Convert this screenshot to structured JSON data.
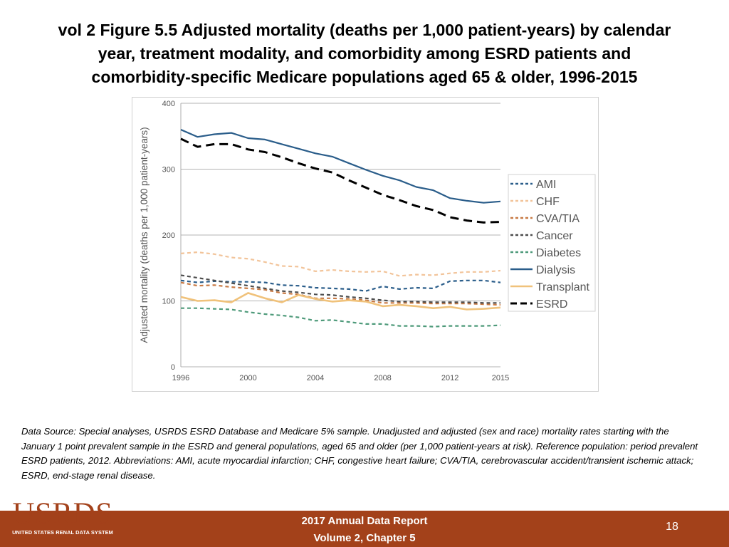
{
  "title_lines": [
    "vol 2 Figure 5.5 Adjusted mortality (deaths per 1,000 patient-years) by calendar",
    "year, treatment modality, and comorbidity among ESRD patients and",
    "comorbidity-specific Medicare populations aged 65 & older, 1996-2015"
  ],
  "chart_data": {
    "type": "line",
    "title": "vol 2 Figure 5.5 Adjusted mortality (deaths per 1,000 patient-years) by calendar year, treatment modality, and comorbidity among ESRD patients and comorbidity-specific Medicare populations aged 65 & older, 1996-2015",
    "xlabel": "",
    "ylabel": "Adjusted mortality (deaths per 1,000 patient-years)",
    "xlim": [
      1996,
      2015
    ],
    "ylim": [
      0,
      400
    ],
    "x_ticks": [
      "1996",
      "2000",
      "2004",
      "2008",
      "2012",
      "2015"
    ],
    "y_ticks": [
      "0",
      "100",
      "200",
      "300",
      "400"
    ],
    "grid": "horizontal",
    "legend_position": "right",
    "x": [
      1996,
      1997,
      1998,
      1999,
      2000,
      2001,
      2002,
      2003,
      2004,
      2005,
      2006,
      2007,
      2008,
      2009,
      2010,
      2011,
      2012,
      2013,
      2014,
      2015
    ],
    "series": [
      {
        "name": "AMI",
        "color": "#2a5d8a",
        "dash": "dashed",
        "values": [
          131,
          128,
          130,
          129,
          129,
          128,
          124,
          123,
          120,
          119,
          118,
          115,
          122,
          118,
          120,
          119,
          130,
          131,
          131,
          128
        ]
      },
      {
        "name": "CHF",
        "color": "#f2c49a",
        "dash": "dashed",
        "values": [
          172,
          174,
          171,
          166,
          164,
          159,
          153,
          152,
          145,
          147,
          145,
          144,
          145,
          138,
          140,
          139,
          142,
          144,
          144,
          146
        ]
      },
      {
        "name": "CVA/TIA",
        "color": "#c87a45",
        "dash": "dashed",
        "values": [
          128,
          123,
          124,
          121,
          119,
          117,
          112,
          110,
          104,
          104,
          103,
          101,
          97,
          97,
          97,
          96,
          96,
          96,
          95,
          94
        ]
      },
      {
        "name": "Cancer",
        "color": "#4d4d4d",
        "dash": "dashed",
        "values": [
          139,
          135,
          131,
          127,
          123,
          119,
          115,
          113,
          110,
          109,
          106,
          104,
          101,
          99,
          99,
          98,
          98,
          98,
          97,
          97
        ]
      },
      {
        "name": "Diabetes",
        "color": "#4e9a7a",
        "dash": "dashed",
        "values": [
          89,
          89,
          88,
          87,
          83,
          80,
          78,
          75,
          70,
          71,
          68,
          65,
          65,
          62,
          62,
          61,
          62,
          62,
          62,
          63
        ]
      },
      {
        "name": "Dialysis",
        "color": "#2a5d8a",
        "dash": "solid",
        "values": [
          360,
          349,
          353,
          355,
          347,
          345,
          338,
          331,
          324,
          319,
          309,
          299,
          290,
          283,
          273,
          268,
          256,
          252,
          249,
          251
        ]
      },
      {
        "name": "Transplant",
        "color": "#f0c27b",
        "dash": "solid",
        "values": [
          106,
          100,
          101,
          98,
          112,
          104,
          98,
          109,
          103,
          99,
          101,
          99,
          92,
          94,
          92,
          89,
          91,
          87,
          88,
          90
        ]
      },
      {
        "name": "ESRD",
        "color": "#000000",
        "dash": "dashed",
        "values": [
          346,
          334,
          338,
          338,
          330,
          326,
          318,
          309,
          301,
          295,
          283,
          272,
          261,
          253,
          244,
          238,
          227,
          222,
          219,
          220
        ]
      }
    ]
  },
  "source_text": "Data Source: Special analyses, USRDS ESRD Database and Medicare 5% sample. Unadjusted and adjusted (sex and race) mortality rates starting with the January 1 point prevalent sample in the ESRD and general populations, aged 65 and older (per 1,000 patient-years at risk). Reference population: period prevalent ESRD patients, 2012. Abbreviations: AMI, acute myocardial infarction; CHF, congestive heart failure; CVA/TIA, cerebrovascular accident/transient ischemic attack; ESRD, end-stage renal disease.",
  "logo": {
    "letters": "USRDS",
    "subtitle": "UNITED STATES RENAL DATA SYSTEM"
  },
  "footer": {
    "lines": [
      "2017 Annual Data Report",
      "Volume 2, Chapter 5"
    ],
    "page_number": "18",
    "bg_color": "#a3411a"
  }
}
